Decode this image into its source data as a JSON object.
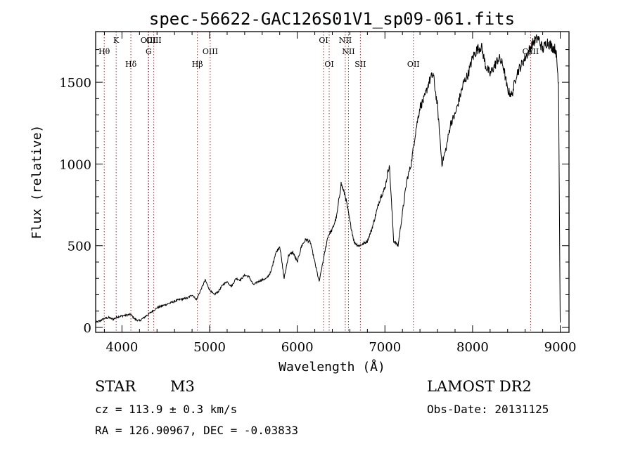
{
  "chart_data": {
    "type": "line",
    "title": "spec-56622-GAC126S01V1_sp09-061.fits",
    "xlabel": "Wavelength (Å)",
    "ylabel": "Flux (relative)",
    "xlim": [
      3700,
      9100
    ],
    "ylim": [
      -30,
      1810
    ],
    "x_ticks": [
      4000,
      5000,
      6000,
      7000,
      8000,
      9000
    ],
    "y_ticks": [
      0,
      500,
      1000,
      1500
    ],
    "grid": false,
    "series": [
      {
        "x": [
          3700,
          3750,
          3800,
          3850,
          3900,
          3950,
          4000,
          4050,
          4100,
          4150,
          4200,
          4250,
          4300,
          4350,
          4400,
          4450,
          4500,
          4550,
          4600,
          4650,
          4700,
          4750,
          4800,
          4850,
          4900,
          4950,
          5000,
          5050,
          5100,
          5150,
          5200,
          5250,
          5300,
          5350,
          5400,
          5450,
          5500,
          5550,
          5600,
          5650,
          5700,
          5750,
          5800,
          5850,
          5900,
          5950,
          6000,
          6050,
          6100,
          6150,
          6200,
          6250,
          6300,
          6350,
          6400,
          6450,
          6500,
          6550,
          6600,
          6650,
          6700,
          6750,
          6800,
          6850,
          6900,
          6950,
          7000,
          7050,
          7100,
          7150,
          7200,
          7250,
          7300,
          7350,
          7400,
          7450,
          7500,
          7550,
          7600,
          7650,
          7700,
          7750,
          7800,
          7850,
          7900,
          7950,
          8000,
          8050,
          8100,
          8150,
          8200,
          8250,
          8300,
          8350,
          8400,
          8450,
          8500,
          8550,
          8600,
          8650,
          8700,
          8750,
          8800,
          8850,
          8900,
          8950,
          8980,
          9000
        ],
        "y": [
          30,
          40,
          55,
          60,
          50,
          65,
          70,
          75,
          80,
          50,
          40,
          60,
          80,
          100,
          120,
          130,
          140,
          150,
          160,
          170,
          175,
          180,
          200,
          170,
          230,
          290,
          230,
          200,
          220,
          260,
          280,
          250,
          300,
          290,
          320,
          310,
          260,
          280,
          290,
          300,
          340,
          450,
          500,
          300,
          440,
          460,
          400,
          500,
          540,
          520,
          400,
          280,
          420,
          560,
          600,
          680,
          880,
          800,
          650,
          520,
          500,
          510,
          530,
          600,
          700,
          800,
          850,
          1000,
          530,
          500,
          700,
          900,
          1000,
          1200,
          1350,
          1400,
          1500,
          1550,
          1350,
          1000,
          1100,
          1250,
          1300,
          1400,
          1500,
          1550,
          1650,
          1700,
          1720,
          1600,
          1550,
          1600,
          1650,
          1600,
          1450,
          1420,
          1550,
          1600,
          1650,
          1700,
          1750,
          1770,
          1700,
          1750,
          1720,
          1700,
          1500,
          30
        ]
      }
    ],
    "line_markers": [
      {
        "label": "Hθ",
        "x": 3798,
        "row": 2
      },
      {
        "label": "K",
        "x": 3934,
        "row": 1
      },
      {
        "label": "Hδ",
        "x": 4102,
        "row": 3
      },
      {
        "label": "OIII",
        "x": 4300,
        "row": 1
      },
      {
        "label": "G",
        "x": 4305,
        "row": 2
      },
      {
        "label": "OIII",
        "x": 4363,
        "row": 0
      },
      {
        "label": "Hβ",
        "x": 4861,
        "row": 3
      },
      {
        "label": "OIII",
        "x": 5007,
        "row": 2
      },
      {
        "label": "OI",
        "x": 6300,
        "row": 1
      },
      {
        "label": "OI",
        "x": 6364,
        "row": 3
      },
      {
        "label": "NII",
        "x": 6548,
        "row": 1
      },
      {
        "label": "NII",
        "x": 6584,
        "row": 2
      },
      {
        "label": "SII",
        "x": 6720,
        "row": 3
      },
      {
        "label": "OII",
        "x": 7325,
        "row": 3
      },
      {
        "label": "CaII",
        "x": 8662,
        "row": 2
      }
    ]
  },
  "info": {
    "object_class": "STAR",
    "subclass": "M3",
    "survey": "LAMOST DR2",
    "redshift_text": "cz = 113.9 ± 0.3 km/s",
    "obs_date_text": "Obs-Date: 20131125",
    "coords_text": "RA = 126.90967, DEC =  -0.03833"
  },
  "colors": {
    "spectrum": "#000000",
    "marker_lines": "#b22222",
    "axes": "#000000"
  }
}
